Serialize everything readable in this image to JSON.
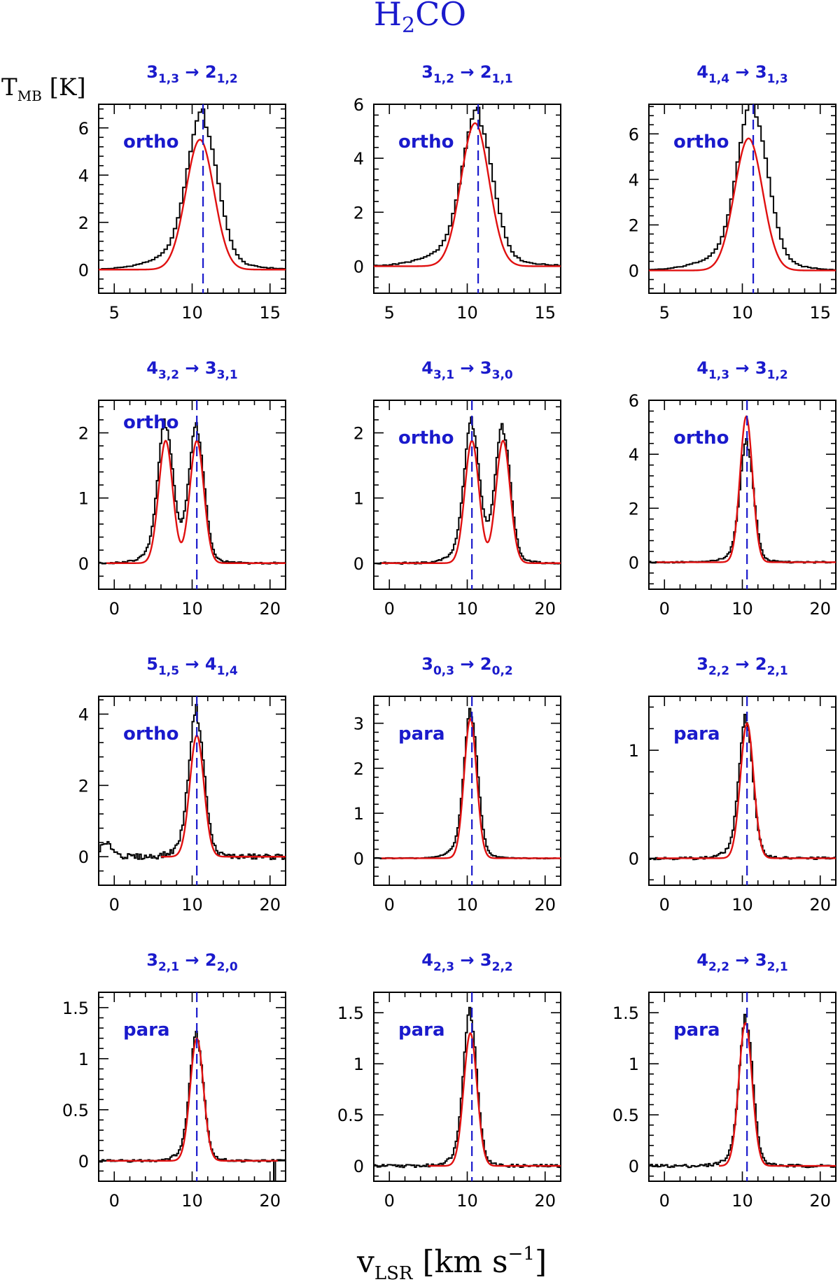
{
  "figure": {
    "title": {
      "main": "H",
      "sub": "2",
      "rest": "CO"
    },
    "ylabel": {
      "main": "T",
      "sub": "MB",
      "rest": " [K]"
    },
    "xlabel": {
      "main": "v",
      "sub": "LSR",
      "rest": " [km s",
      "sup": "−1",
      "end": "]"
    }
  },
  "colors": {
    "observed": "#000000",
    "model": "#e01010",
    "annotation": "#1a1acc"
  },
  "chart_data": [
    {
      "type": "line",
      "title": "3 1,3 → 2 1,2",
      "label": {
        "up_n": "3",
        "up_k": "1,3",
        "arrow": "→",
        "lo_n": "2",
        "lo_k": "1,2"
      },
      "tag": "ortho",
      "xlim": [
        4,
        16
      ],
      "ylim": [
        -1,
        7
      ],
      "xticks": [
        5,
        10,
        15
      ],
      "yticks": [
        0,
        2,
        4,
        6
      ],
      "vlsr": 10.7,
      "obs": {
        "center": 10.7,
        "amp": 5.8,
        "width": 0.95,
        "wing": 1.0,
        "wing_w": 2.4,
        "second": null,
        "noise": 0.02
      },
      "model": {
        "center": 10.5,
        "amp": 5.5,
        "width": 0.9,
        "second": null,
        "range": [
          4,
          16
        ]
      }
    },
    {
      "type": "line",
      "title": "3 1,2 → 2 1,1",
      "label": {
        "up_n": "3",
        "up_k": "1,2",
        "arrow": "→",
        "lo_n": "2",
        "lo_k": "1,1"
      },
      "tag": "ortho",
      "xlim": [
        4,
        16
      ],
      "ylim": [
        -1,
        6
      ],
      "xticks": [
        5,
        10,
        15
      ],
      "yticks": [
        0,
        2,
        4,
        6
      ],
      "vlsr": 10.7,
      "obs": {
        "center": 10.7,
        "amp": 5.0,
        "width": 0.95,
        "wing": 0.9,
        "wing_w": 2.4,
        "second": null,
        "noise": 0.02
      },
      "model": {
        "center": 10.5,
        "amp": 5.3,
        "width": 0.9,
        "second": null,
        "range": [
          4,
          16
        ]
      }
    },
    {
      "type": "line",
      "title": "4 1,4 → 3 1,3",
      "label": {
        "up_n": "4",
        "up_k": "1,4",
        "arrow": "→",
        "lo_n": "3",
        "lo_k": "1,3"
      },
      "tag": "ortho",
      "xlim": [
        4,
        16
      ],
      "ylim": [
        -1,
        7.3
      ],
      "xticks": [
        5,
        10,
        15
      ],
      "yticks": [
        0,
        2,
        4,
        6
      ],
      "vlsr": 10.7,
      "obs": {
        "center": 10.7,
        "amp": 6.5,
        "width": 0.95,
        "wing": 1.1,
        "wing_w": 2.4,
        "second": null,
        "noise": 0.02
      },
      "model": {
        "center": 10.4,
        "amp": 5.8,
        "width": 0.9,
        "second": null,
        "range": [
          4,
          16
        ]
      }
    },
    {
      "type": "line",
      "title": "4 3,2 → 3 3,1",
      "label": {
        "up_n": "4",
        "up_k": "3,2",
        "arrow": "→",
        "lo_n": "3",
        "lo_k": "3,1"
      },
      "tag": "ortho",
      "xlim": [
        -2,
        22
      ],
      "ylim": [
        -0.4,
        2.5
      ],
      "xticks": [
        0,
        10,
        20
      ],
      "yticks": [
        0,
        1,
        2
      ],
      "vlsr": 10.6,
      "obs": {
        "center": 10.6,
        "amp": 1.9,
        "width": 0.95,
        "wing": 0.25,
        "wing_w": 2.2,
        "second": {
          "center": 6.6,
          "amp": 1.95
        },
        "noise": 0.015
      },
      "model": {
        "center": 10.6,
        "amp": 1.88,
        "width": 0.9,
        "second": {
          "center": 6.6,
          "amp": 1.88
        },
        "range": [
          -1,
          22
        ]
      }
    },
    {
      "type": "line",
      "title": "4 3,1 → 3 3,0",
      "label": {
        "up_n": "4",
        "up_k": "3,1",
        "arrow": "→",
        "lo_n": "3",
        "lo_k": "3,0"
      },
      "tag": "ortho",
      "xlim": [
        -2,
        22
      ],
      "ylim": [
        -0.4,
        2.5
      ],
      "xticks": [
        0,
        10,
        20
      ],
      "yticks": [
        0,
        1,
        2
      ],
      "vlsr": 10.6,
      "obs": {
        "center": 10.6,
        "amp": 1.95,
        "width": 0.95,
        "wing": 0.25,
        "wing_w": 2.2,
        "second": {
          "center": 14.6,
          "amp": 1.9
        },
        "noise": 0.015
      },
      "model": {
        "center": 10.6,
        "amp": 1.88,
        "width": 0.9,
        "second": {
          "center": 14.6,
          "amp": 1.88
        },
        "range": [
          -1,
          22
        ]
      }
    },
    {
      "type": "line",
      "title": "4 1,3 → 3 1,2",
      "label": {
        "up_n": "4",
        "up_k": "1,3",
        "arrow": "→",
        "lo_n": "3",
        "lo_k": "1,2"
      },
      "tag": "ortho",
      "xlim": [
        -2,
        22
      ],
      "ylim": [
        -1,
        6
      ],
      "xticks": [
        0,
        10,
        20
      ],
      "yticks": [
        0,
        2,
        4,
        6
      ],
      "vlsr": 10.6,
      "obs": {
        "center": 10.6,
        "amp": 4.1,
        "width": 0.85,
        "wing": 0.5,
        "wing_w": 2.0,
        "second": null,
        "noise": 0.03
      },
      "model": {
        "center": 10.5,
        "amp": 5.4,
        "width": 0.8,
        "second": null,
        "range": [
          -1,
          22
        ]
      }
    },
    {
      "type": "line",
      "title": "5 1,5 → 4 1,4",
      "label": {
        "up_n": "5",
        "up_k": "1,5",
        "arrow": "→",
        "lo_n": "4",
        "lo_k": "1,4"
      },
      "tag": "ortho",
      "xlim": [
        -2,
        22
      ],
      "ylim": [
        -0.8,
        4.5
      ],
      "xticks": [
        0,
        10,
        20
      ],
      "yticks": [
        0,
        2,
        4
      ],
      "vlsr": 10.6,
      "obs": {
        "center": 10.6,
        "amp": 3.7,
        "width": 0.95,
        "wing": 0.5,
        "wing_w": 2.0,
        "second": null,
        "noise": 0.08,
        "bump": {
          "center": -1.0,
          "amp": 0.35,
          "width": 0.9
        }
      },
      "model": {
        "center": 10.6,
        "amp": 3.4,
        "width": 0.9,
        "second": null,
        "range": [
          6,
          22
        ]
      }
    },
    {
      "type": "line",
      "title": "3 0,3 → 2 0,2",
      "label": {
        "up_n": "3",
        "up_k": "0,3",
        "arrow": "→",
        "lo_n": "2",
        "lo_k": "0,2"
      },
      "tag": "para",
      "xlim": [
        -2,
        22
      ],
      "ylim": [
        -0.6,
        3.6
      ],
      "xticks": [
        0,
        10,
        20
      ],
      "yticks": [
        0,
        1,
        2,
        3
      ],
      "vlsr": 10.6,
      "obs": {
        "center": 10.5,
        "amp": 3.0,
        "width": 0.85,
        "wing": 0.4,
        "wing_w": 2.0,
        "second": null,
        "noise": 0.01
      },
      "model": {
        "center": 10.4,
        "amp": 3.1,
        "width": 0.8,
        "second": null,
        "range": [
          -1,
          22
        ]
      }
    },
    {
      "type": "line",
      "title": "3 2,2 → 2 2,1",
      "label": {
        "up_n": "3",
        "up_k": "2,2",
        "arrow": "→",
        "lo_n": "2",
        "lo_k": "2,1"
      },
      "tag": "para",
      "xlim": [
        -2,
        22
      ],
      "ylim": [
        -0.25,
        1.5
      ],
      "xticks": [
        0,
        10,
        20
      ],
      "yticks": [
        0,
        1
      ],
      "vlsr": 10.6,
      "obs": {
        "center": 10.5,
        "amp": 1.2,
        "width": 0.85,
        "wing": 0.15,
        "wing_w": 2.0,
        "second": null,
        "noise": 0.012
      },
      "model": {
        "center": 10.6,
        "amp": 1.25,
        "width": 0.85,
        "second": null,
        "range": [
          -1,
          22
        ]
      }
    },
    {
      "type": "line",
      "title": "3 2,1 → 2 2,0",
      "label": {
        "up_n": "3",
        "up_k": "2,1",
        "arrow": "→",
        "lo_n": "2",
        "lo_k": "2,0"
      },
      "tag": "para",
      "xlim": [
        -2,
        22
      ],
      "ylim": [
        -0.2,
        1.65
      ],
      "xticks": [
        0,
        10,
        20
      ],
      "yticks": [
        0,
        0.5,
        1,
        1.5
      ],
      "vlsr": 10.6,
      "obs": {
        "center": 10.6,
        "amp": 1.15,
        "width": 0.85,
        "wing": 0.13,
        "wing_w": 2.0,
        "second": null,
        "noise": 0.012,
        "dip": 20.5
      },
      "model": {
        "center": 10.6,
        "amp": 1.2,
        "width": 0.85,
        "second": null,
        "range": [
          -1,
          21
        ]
      }
    },
    {
      "type": "line",
      "title": "4 2,3 → 3 2,2",
      "label": {
        "up_n": "4",
        "up_k": "2,3",
        "arrow": "→",
        "lo_n": "3",
        "lo_k": "2,2"
      },
      "tag": "para",
      "xlim": [
        -2,
        22
      ],
      "ylim": [
        -0.15,
        1.7
      ],
      "xticks": [
        0,
        10,
        20
      ],
      "yticks": [
        0,
        0.5,
        1,
        1.5
      ],
      "vlsr": 10.6,
      "obs": {
        "center": 10.4,
        "amp": 1.4,
        "width": 0.85,
        "wing": 0.15,
        "wing_w": 2.0,
        "second": null,
        "noise": 0.015
      },
      "model": {
        "center": 10.4,
        "amp": 1.3,
        "width": 0.85,
        "second": null,
        "range": [
          5,
          22
        ]
      }
    },
    {
      "type": "line",
      "title": "4 2,2 → 3 2,1",
      "label": {
        "up_n": "4",
        "up_k": "2,2",
        "arrow": "→",
        "lo_n": "3",
        "lo_k": "2,1"
      },
      "tag": "para",
      "xlim": [
        -2,
        22
      ],
      "ylim": [
        -0.15,
        1.7
      ],
      "xticks": [
        0,
        10,
        20
      ],
      "yticks": [
        0,
        0.5,
        1,
        1.5
      ],
      "vlsr": 10.6,
      "obs": {
        "center": 10.5,
        "amp": 1.35,
        "width": 0.85,
        "wing": 0.15,
        "wing_w": 2.0,
        "second": null,
        "noise": 0.015
      },
      "model": {
        "center": 10.4,
        "amp": 1.4,
        "width": 0.85,
        "second": null,
        "range": [
          7,
          22
        ]
      }
    }
  ]
}
